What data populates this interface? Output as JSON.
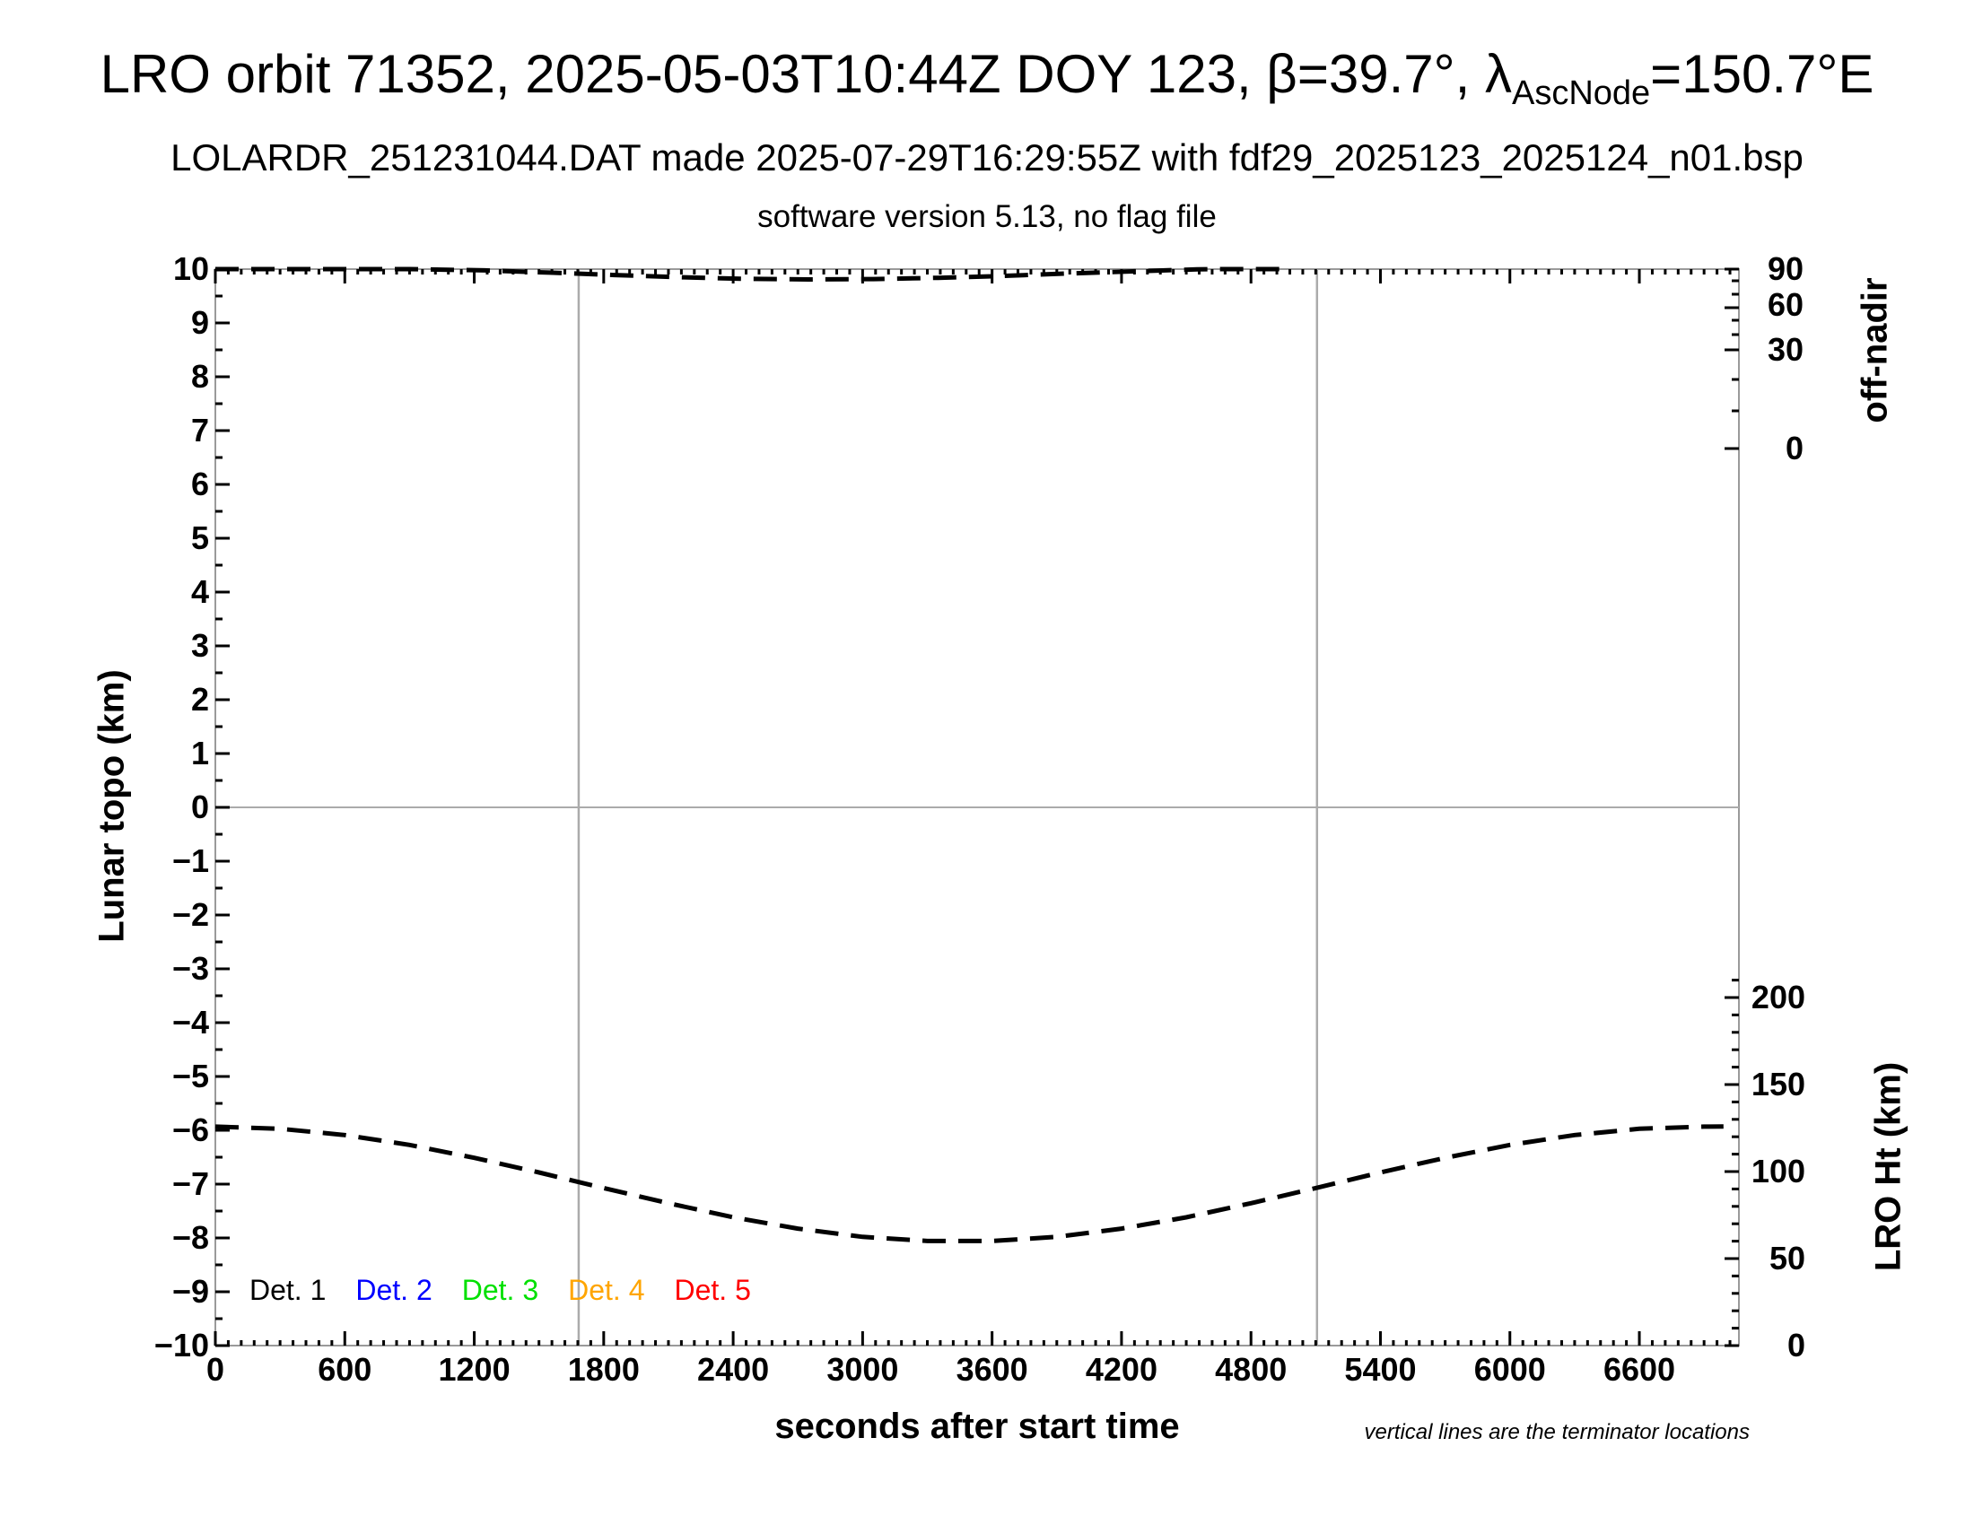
{
  "title": {
    "pre": "LRO orbit 71352, 2025-05-03T10:44Z DOY 123, β=39.7°, λ",
    "sub": "AscNode",
    "post": "=150.7°E"
  },
  "subtitle": "LOLARDR_251231044.DAT made 2025-07-29T16:29:55Z with fdf29_2025123_2025124_n01.bsp",
  "subtitle2": "software version 5.13, no flag file",
  "note": "vertical lines are the terminator locations",
  "legend": {
    "items": [
      {
        "label": "Det. 1",
        "color": "#000000"
      },
      {
        "label": "Det. 2",
        "color": "#0000ff"
      },
      {
        "label": "Det. 3",
        "color": "#00e000"
      },
      {
        "label": "Det. 4",
        "color": "#ffa500"
      },
      {
        "label": "Det. 5",
        "color": "#ff0000"
      }
    ]
  },
  "axes": {
    "x": {
      "label": "seconds after start time",
      "min": 0,
      "max": 7060,
      "major_ticks": [
        0,
        600,
        1200,
        1800,
        2400,
        3000,
        3600,
        4200,
        4800,
        5400,
        6000,
        6600
      ],
      "minor_step": 60
    },
    "y_left": {
      "label": "Lunar topo (km)",
      "min": -10,
      "max": 10,
      "major_ticks": [
        10,
        9,
        8,
        7,
        6,
        5,
        4,
        3,
        2,
        1,
        0,
        -1,
        -2,
        -3,
        -4,
        -5,
        -6,
        -7,
        -8,
        -9,
        -10
      ],
      "minor_step": 0.5
    },
    "y_right_top": {
      "label": "off-nadir",
      "major_ticks": [
        90,
        60,
        30,
        0
      ],
      "minor_ticks": [
        80,
        70,
        50,
        40,
        20,
        10
      ]
    },
    "y_right_bottom": {
      "label": "LRO Ht (km)",
      "major_ticks": [
        200,
        150,
        100,
        50,
        0
      ],
      "minor_step_km": 10,
      "minor_max_km": 210
    }
  },
  "chart_data": {
    "type": "line",
    "title": "LRO orbit 71352, 2025-05-03T10:44Z DOY 123, β=39.7°, λAscNode=150.7°E",
    "xlabel": "seconds after start time",
    "ylabel_left": "Lunar topo (km)",
    "ylabel_right_top": "off-nadir",
    "ylabel_right_bottom": "LRO Ht (km)",
    "x_range_s": [
      0,
      7060
    ],
    "lunar_topo_range_km": [
      -10,
      10
    ],
    "grid": false,
    "legend_position": "bottom-left-inside",
    "terminator_lines_s": [
      1684,
      5106
    ],
    "series": [
      {
        "name": "off-nadir angle",
        "units": "deg",
        "axis": "right-top",
        "style": "dashed-black",
        "points": [
          [
            0,
            90
          ],
          [
            300,
            90
          ],
          [
            600,
            90
          ],
          [
            900,
            90
          ],
          [
            1250,
            83.1
          ],
          [
            1550,
            78.6
          ],
          [
            1850,
            75.2
          ],
          [
            2150,
            72.7
          ],
          [
            2450,
            71.1
          ],
          [
            2750,
            70.5
          ],
          [
            3050,
            70.8
          ],
          [
            3350,
            72.1
          ],
          [
            3650,
            74.2
          ],
          [
            3950,
            77.3
          ],
          [
            4250,
            81.0
          ],
          [
            4550,
            87.0
          ],
          [
            4650,
            90
          ],
          [
            4800,
            90
          ],
          [
            4950,
            90
          ]
        ]
      },
      {
        "name": "LRO height",
        "units": "km",
        "axis": "right-bottom",
        "style": "dashed-black",
        "points": [
          [
            0,
            125.8
          ],
          [
            300,
            124.6
          ],
          [
            600,
            121.0
          ],
          [
            900,
            115.3
          ],
          [
            1200,
            107.9
          ],
          [
            1500,
            99.5
          ],
          [
            1800,
            90.5
          ],
          [
            2100,
            81.8
          ],
          [
            2400,
            73.7
          ],
          [
            2700,
            67.2
          ],
          [
            3000,
            62.5
          ],
          [
            3300,
            60.1
          ],
          [
            3600,
            60.1
          ],
          [
            3900,
            62.5
          ],
          [
            4200,
            67.2
          ],
          [
            4500,
            73.7
          ],
          [
            4800,
            81.8
          ],
          [
            5100,
            90.5
          ],
          [
            5400,
            99.5
          ],
          [
            5700,
            107.9
          ],
          [
            6000,
            115.3
          ],
          [
            6300,
            121.0
          ],
          [
            6600,
            124.6
          ],
          [
            6900,
            125.8
          ],
          [
            6990,
            125.9
          ]
        ]
      }
    ]
  }
}
